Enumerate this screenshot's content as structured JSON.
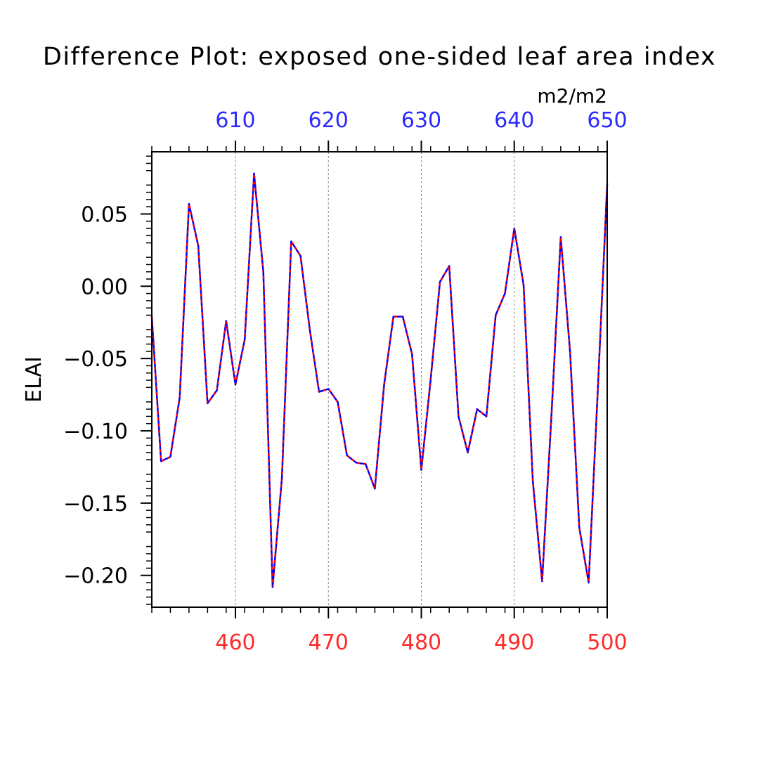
{
  "chart_data": {
    "type": "line",
    "title": "Difference Plot: exposed one-sided leaf area index",
    "units": "m2/m2",
    "ylabel": "ELAI",
    "ylim": [
      -0.222,
      0.093
    ],
    "y_ticks": [
      -0.2,
      -0.15,
      -0.1,
      -0.05,
      0.0,
      0.05
    ],
    "y_tick_labels": [
      "−0.20",
      "−0.15",
      "−0.10",
      "−0.05",
      "0.00",
      "0.05"
    ],
    "bottom_axis": {
      "range": [
        451,
        500
      ],
      "ticks": [
        460,
        470,
        480,
        490,
        500
      ],
      "labels": [
        "460",
        "470",
        "480",
        "490",
        "500"
      ],
      "color": "#ff2a2a"
    },
    "top_axis": {
      "range": [
        601,
        650
      ],
      "ticks": [
        610,
        620,
        630,
        640,
        650
      ],
      "labels": [
        "610",
        "620",
        "630",
        "640",
        "650"
      ],
      "color": "#2a2aff"
    },
    "vertical_gridlines_at": [
      460,
      470,
      480,
      490
    ],
    "series": [
      {
        "line_color": "#0000ff",
        "dash_color": "#ff0000",
        "x": [
          451,
          452,
          453,
          454,
          455,
          456,
          457,
          458,
          459,
          460,
          461,
          462,
          463,
          464,
          465,
          466,
          467,
          468,
          469,
          470,
          471,
          472,
          473,
          474,
          475,
          476,
          477,
          478,
          479,
          480,
          481,
          482,
          483,
          484,
          485,
          486,
          487,
          488,
          489,
          490,
          491,
          492,
          493,
          494,
          495,
          496,
          497,
          498,
          499,
          500
        ],
        "y": [
          -0.021,
          -0.121,
          -0.118,
          -0.077,
          0.057,
          0.028,
          -0.081,
          -0.072,
          -0.024,
          -0.068,
          -0.037,
          0.078,
          0.01,
          -0.208,
          -0.133,
          0.031,
          0.021,
          -0.03,
          -0.073,
          -0.071,
          -0.08,
          -0.117,
          -0.122,
          -0.123,
          -0.14,
          -0.068,
          -0.021,
          -0.021,
          -0.047,
          -0.127,
          -0.065,
          0.003,
          0.014,
          -0.09,
          -0.115,
          -0.085,
          -0.09,
          -0.02,
          -0.005,
          0.04,
          0.001,
          -0.135,
          -0.204,
          -0.089,
          0.034,
          -0.045,
          -0.167,
          -0.205,
          -0.07,
          0.071
        ]
      }
    ]
  }
}
